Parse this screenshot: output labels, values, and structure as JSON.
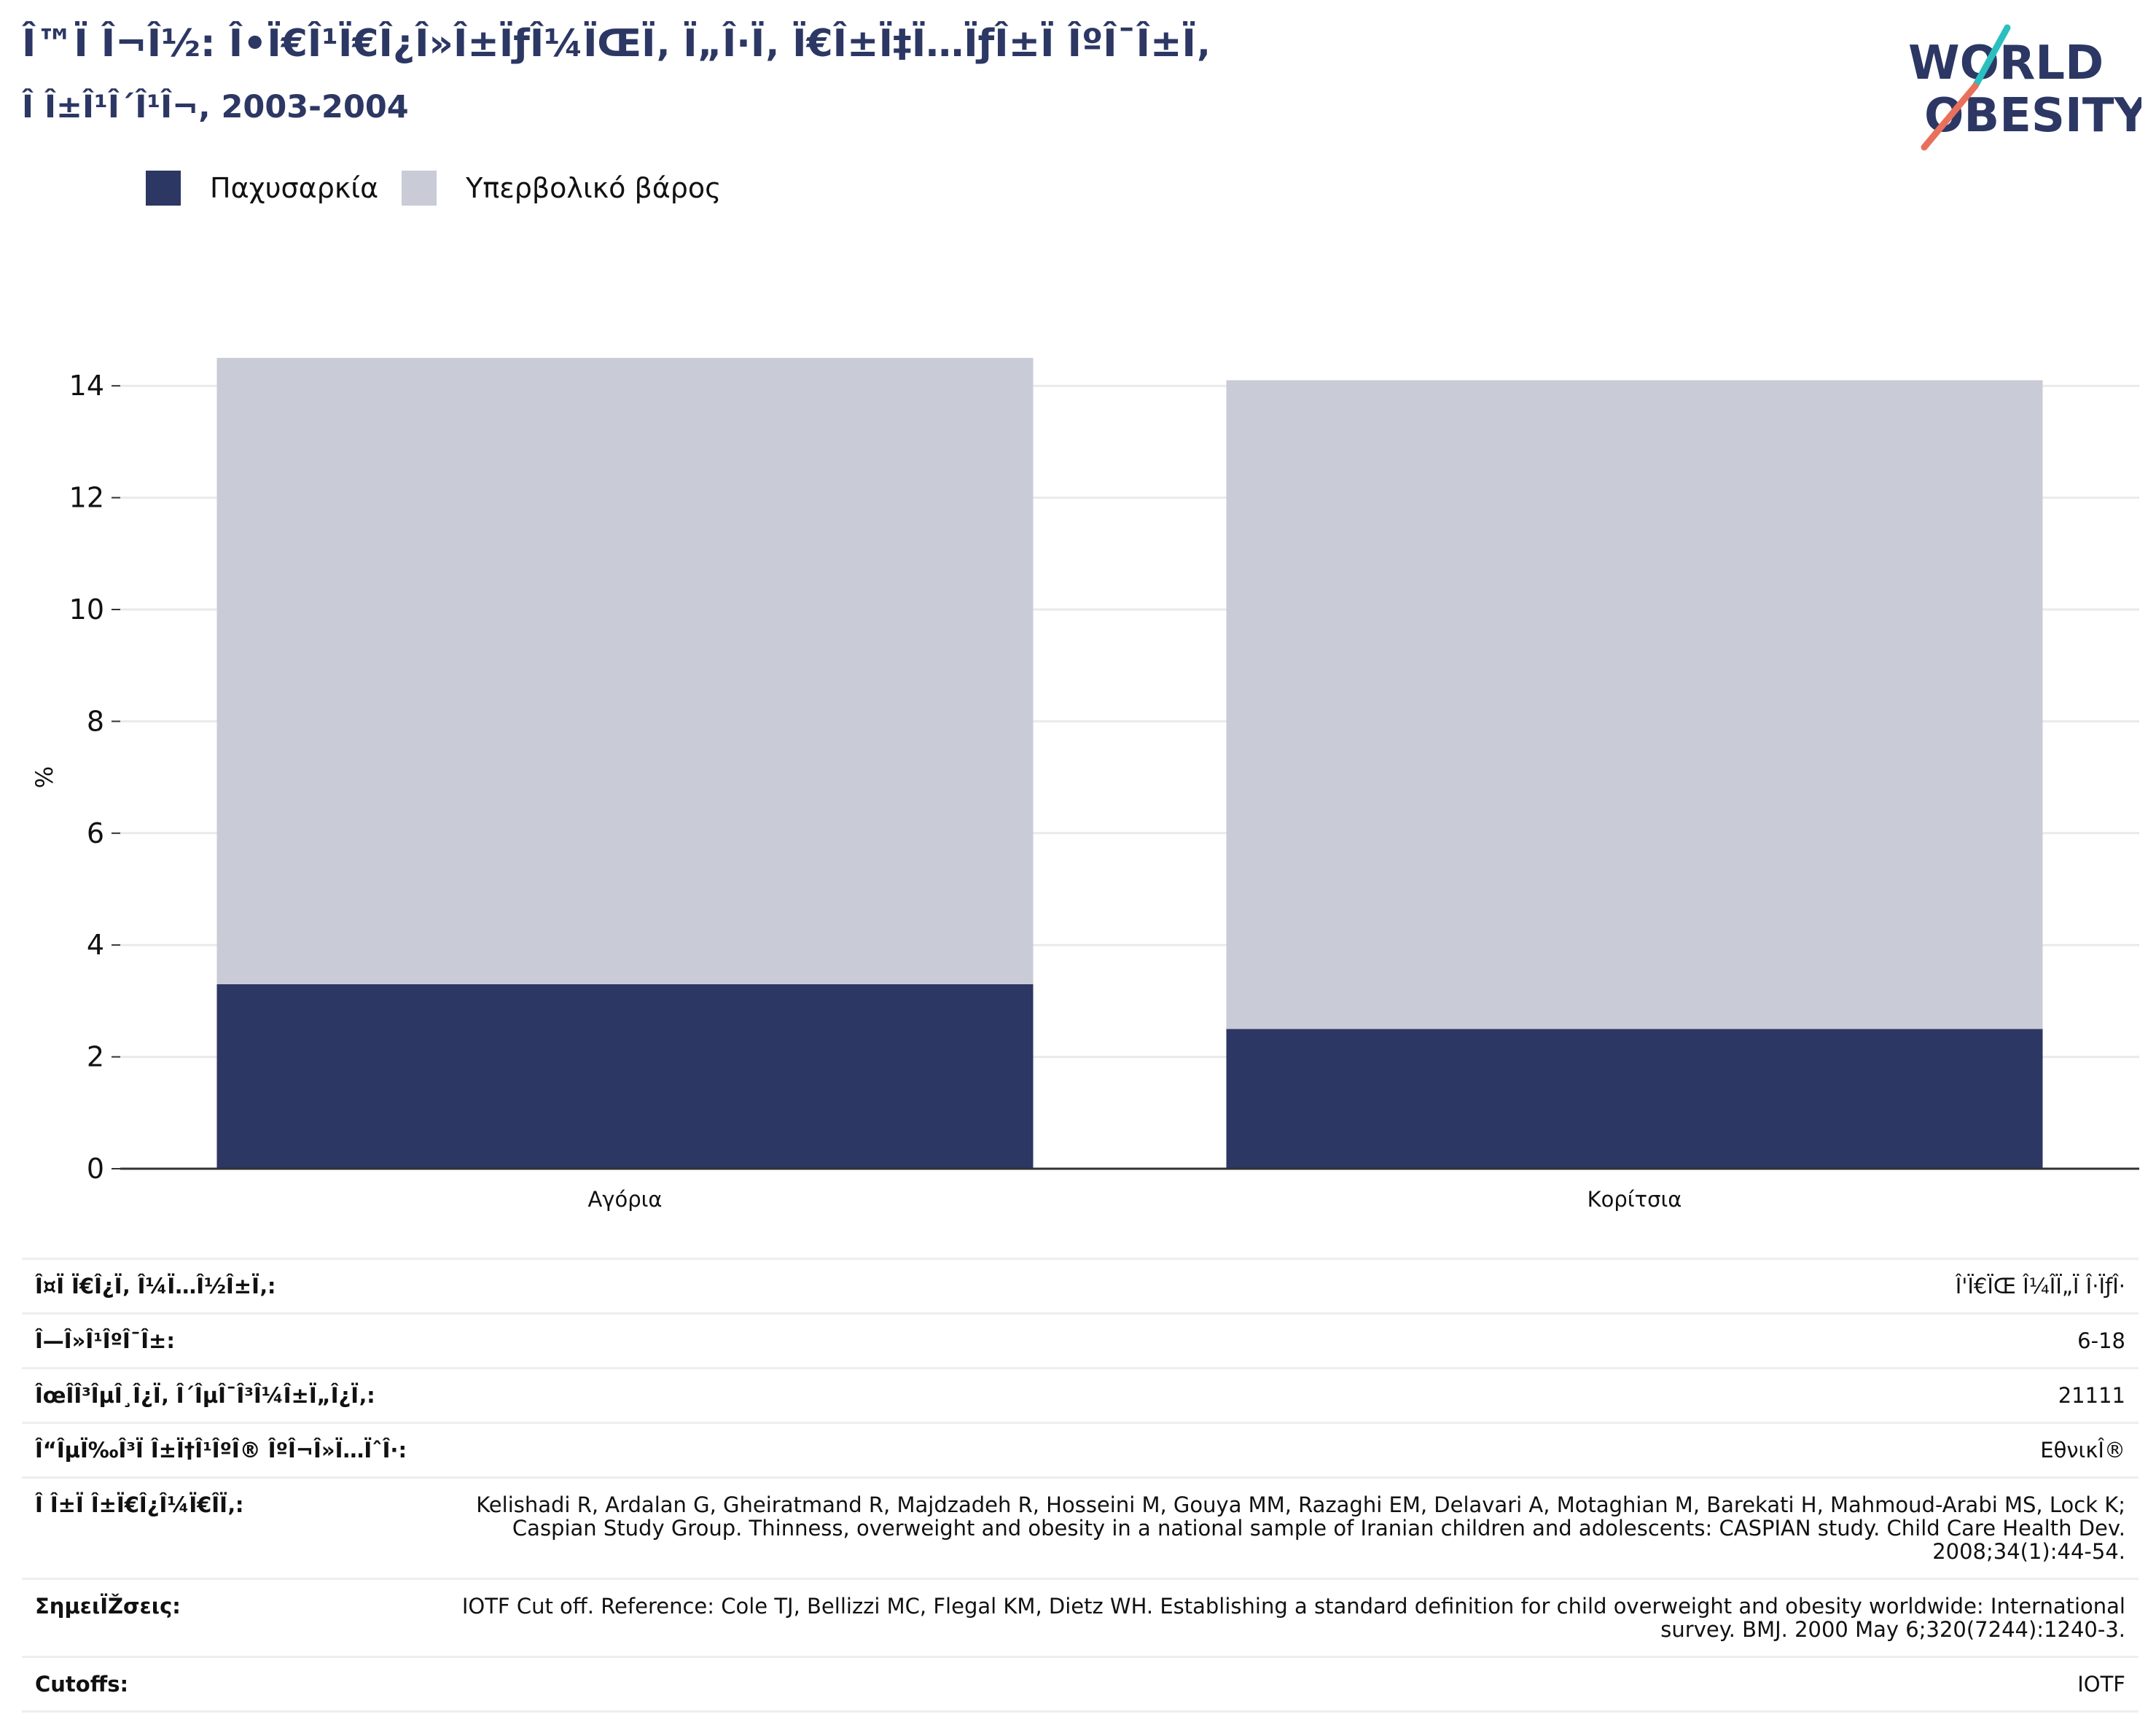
{
  "header": {
    "title": "Î™Ï Î¬Î½: Î•Ï€Î¹Ï€Î¿Î»Î±ÏƒÎ¼ÏŒÏ‚ Ï„Î·Ï‚ Ï€Î±Ï‡Ï…ÏƒÎ±Ï ÎºÎ¯Î±Ï‚",
    "subtitle": "Î Î±Î¹Î´Î¹Î¬, 2003-2004",
    "logo_text_1": "WORLD",
    "logo_text_2": "OBESITY"
  },
  "legend": [
    {
      "label": "Παχυσαρκία",
      "color": "#2c3764"
    },
    {
      "label": "Υπερβολικό βάρος",
      "color": "#c9cbd7"
    }
  ],
  "chart_data": {
    "type": "bar",
    "stacked": true,
    "categories": [
      "Αγόρια",
      "Κορίτσια"
    ],
    "series": [
      {
        "name": "Παχυσαρκία",
        "values": [
          3.3,
          2.5
        ],
        "color": "#2c3764"
      },
      {
        "name": "Υπερβολικό βάρος",
        "values": [
          11.2,
          11.6
        ],
        "color": "#c9cbd7"
      }
    ],
    "ylabel": "%",
    "ylim": [
      0,
      14.8
    ],
    "yticks": [
      0,
      2,
      4,
      6,
      8,
      10,
      12,
      14
    ],
    "grid": true
  },
  "meta": [
    {
      "key": "Î¤Ï Ï€Î¿Ï‚ Î¼Ï…Î½Î±Ï‚:",
      "value": "Î'Ï€ÏŒ Î¼ÎÏ„Ï Î·ÏƒÎ·"
    },
    {
      "key": "Î—Î»Î¹ÎºÎ¯Î±:",
      "value": "6-18"
    },
    {
      "key": "ÎœÎ­Î³ÎµÎ¸Î¿Ï‚ Î´ÎµÎ¯Î³Î¼Î±Ï„Î¿Ï‚:",
      "value": "21111"
    },
    {
      "key": "Î“ÎµÏ‰Î³Ï Î±Ï†Î¹ÎºÎ® ÎºÎ¬Î»Ï…ÏˆÎ·:",
      "value": "ΕθνικÎ®"
    },
    {
      "key": "Î Î±Ï Î±Ï€Î¿Î¼Ï€Î­Ï‚:",
      "value": "Kelishadi R, Ardalan G, Gheiratmand R, Majdzadeh R, Hosseini M, Gouya MM, Razaghi EM, Delavari A, Motaghian M, Barekati H, Mahmoud-Arabi MS, Lock K; Caspian Study Group. Thinness, overweight and obesity in a national sample of Iranian children and adolescents: CASPIAN study. Child Care Health Dev. 2008;34(1):44-54."
    },
    {
      "key": "ΣημειÏŽσεις:",
      "value": "IOTF Cut off. Reference: Cole TJ, Bellizzi MC, Flegal KM, Dietz WH. Establishing a standard definition for child overweight and obesity worldwide: International survey. BMJ. 2000 May 6;320(7244):1240-3."
    },
    {
      "key": "Cutoffs:",
      "value": "IOTF"
    }
  ]
}
